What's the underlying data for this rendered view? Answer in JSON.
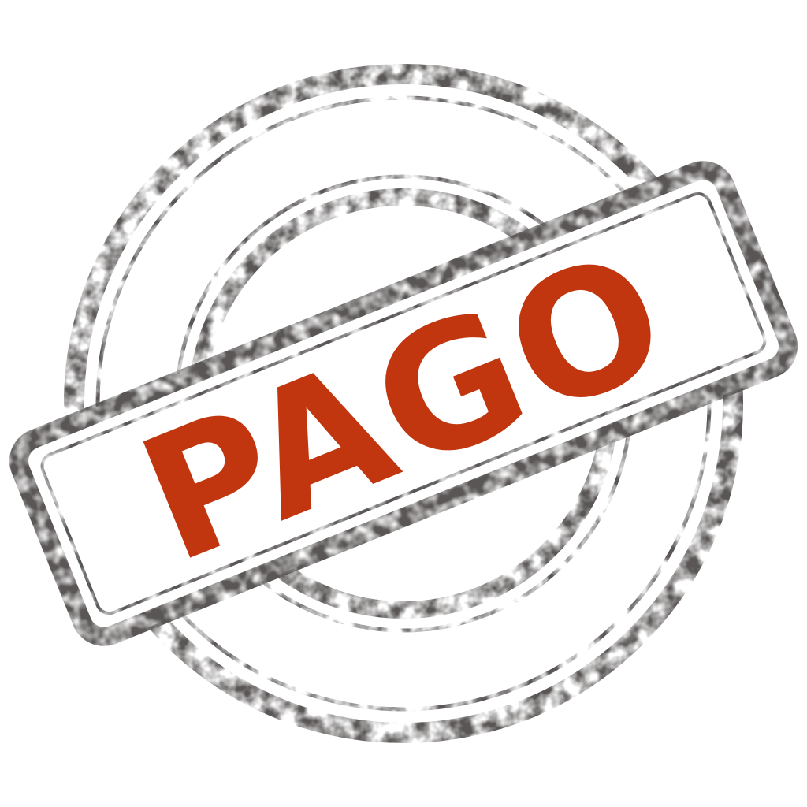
{
  "stamp": {
    "word": "PAGO",
    "colors": {
      "ink_gray": "#5a5756",
      "ink_red": "#c1360f",
      "background": "#ffffff"
    },
    "icons": [
      "stamp-outer-ring-icon",
      "stamp-inner-ring-icon",
      "stamp-banner-icon"
    ]
  }
}
